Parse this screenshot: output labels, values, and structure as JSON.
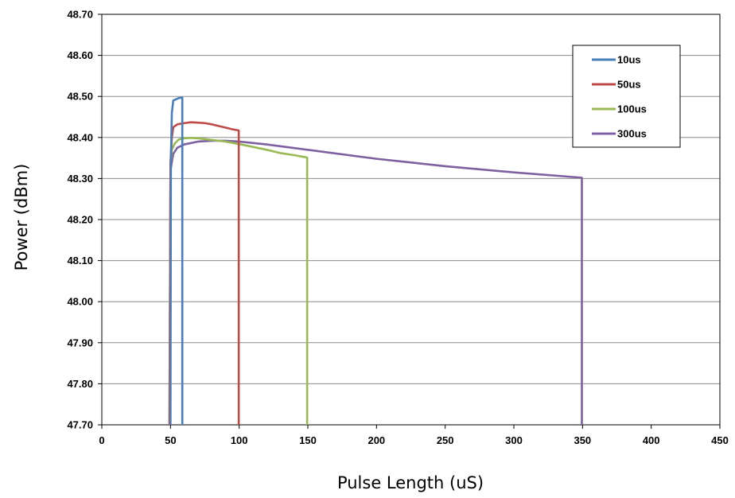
{
  "chart_data": {
    "type": "line",
    "title": "",
    "xlabel": "Pulse Length (uS)",
    "ylabel": "Power (dBm)",
    "xlim": [
      0,
      450
    ],
    "ylim": [
      47.7,
      48.7
    ],
    "x_ticks": [
      0,
      50,
      100,
      150,
      200,
      250,
      300,
      350,
      400,
      450
    ],
    "x_tick_labels": [
      "0",
      "50",
      "100",
      "150",
      "200",
      "250",
      "300",
      "350",
      "400",
      "450"
    ],
    "y_ticks": [
      47.7,
      47.8,
      47.9,
      48.0,
      48.1,
      48.2,
      48.3,
      48.4,
      48.5,
      48.6,
      48.7
    ],
    "y_tick_labels": [
      "47.70",
      "47.80",
      "47.90",
      "48.00",
      "48.10",
      "48.20",
      "48.30",
      "48.40",
      "48.50",
      "48.60",
      "48.70"
    ],
    "grid": "horizontal",
    "legend_position": "top-right",
    "series": [
      {
        "name": "10us",
        "color": "#4a7ebb",
        "x": [
          50,
          50.3,
          51,
          52,
          54,
          56,
          58,
          58.6,
          58.6
        ],
        "y": [
          47.7,
          48.35,
          48.46,
          48.49,
          48.493,
          48.496,
          48.497,
          48.497,
          47.7
        ]
      },
      {
        "name": "50us",
        "color": "#be4b48",
        "x": [
          49.5,
          50,
          51,
          52,
          55,
          60,
          65,
          70,
          75,
          80,
          85,
          90,
          95,
          99.7,
          99.7
        ],
        "y": [
          47.7,
          48.34,
          48.4,
          48.425,
          48.432,
          48.435,
          48.437,
          48.436,
          48.435,
          48.432,
          48.428,
          48.424,
          48.42,
          48.417,
          47.7
        ]
      },
      {
        "name": "100us",
        "color": "#98b954",
        "x": [
          49.3,
          50,
          51,
          53,
          56,
          60,
          65,
          70,
          80,
          90,
          100,
          110,
          120,
          130,
          140,
          149.5,
          149.5
        ],
        "y": [
          47.7,
          48.33,
          48.37,
          48.385,
          48.395,
          48.398,
          48.399,
          48.398,
          48.394,
          48.39,
          48.384,
          48.377,
          48.37,
          48.362,
          48.357,
          48.351,
          47.7
        ]
      },
      {
        "name": "300us",
        "color": "#7d60a0",
        "x": [
          49.2,
          50,
          52,
          55,
          60,
          70,
          80,
          90,
          100,
          120,
          150,
          200,
          250,
          300,
          349.5,
          349.5
        ],
        "y": [
          47.7,
          48.32,
          48.36,
          48.375,
          48.383,
          48.39,
          48.392,
          48.392,
          48.39,
          48.383,
          48.37,
          48.348,
          48.33,
          48.315,
          48.302,
          47.7
        ]
      }
    ]
  }
}
